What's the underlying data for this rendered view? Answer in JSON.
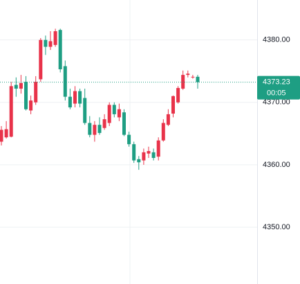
{
  "chart_data": {
    "type": "candlestick",
    "open": [
      4363.7,
      4364.4,
      4364.5,
      4372.8,
      4372.2,
      4373.3,
      4368.7,
      4370.0,
      4373.7,
      4380.0,
      4378.9,
      4379.2,
      4381.6,
      4375.8,
      4370.9,
      4369.8,
      4371.8,
      4370.7,
      4366.7,
      4364.8,
      4366.4,
      4365.9,
      4366.7,
      4369.6,
      4367.6,
      4368.4,
      4364.8,
      4363.3,
      4360.9,
      4360.7,
      4361.8,
      4362.0,
      4361.3,
      4363.9,
      4366.4,
      4368.2,
      4370.0,
      4372.2,
      4374.4,
      4374.0,
      4374.1
    ],
    "high": [
      4366.2,
      4367.0,
      4373.3,
      4374.0,
      4374.4,
      4374.2,
      4371.1,
      4374.2,
      4380.3,
      4380.7,
      4381.4,
      4381.8,
      4381.8,
      4376.7,
      4372.2,
      4372.6,
      4372.2,
      4372.2,
      4367.8,
      4367.0,
      4367.6,
      4368.1,
      4370.0,
      4370.0,
      4369.8,
      4368.9,
      4365.3,
      4363.7,
      4361.4,
      4362.6,
      4362.9,
      4362.6,
      4364.4,
      4367.3,
      4368.9,
      4371.1,
      4372.6,
      4375.1,
      4375.1,
      4374.4,
      4374.4
    ],
    "low": [
      4363.1,
      4364.2,
      4364.4,
      4370.9,
      4371.4,
      4368.7,
      4368.1,
      4369.6,
      4373.3,
      4377.6,
      4378.4,
      4378.9,
      4374.8,
      4370.3,
      4368.9,
      4369.2,
      4369.2,
      4366.4,
      4364.4,
      4363.7,
      4364.8,
      4365.6,
      4366.2,
      4367.6,
      4367.0,
      4364.6,
      4362.9,
      4360.3,
      4359.2,
      4360.0,
      4361.1,
      4360.7,
      4360.7,
      4363.7,
      4366.2,
      4367.6,
      4369.8,
      4372.0,
      4374.0,
      4373.8,
      4372.2
    ],
    "close": [
      4365.6,
      4365.7,
      4372.6,
      4372.2,
      4373.1,
      4368.9,
      4370.3,
      4373.3,
      4380.0,
      4378.9,
      4379.8,
      4381.4,
      4375.3,
      4370.9,
      4369.2,
      4371.8,
      4369.8,
      4366.7,
      4364.8,
      4366.4,
      4365.1,
      4367.3,
      4369.6,
      4368.1,
      4368.9,
      4364.8,
      4363.3,
      4360.7,
      4360.4,
      4362.0,
      4362.2,
      4361.1,
      4363.9,
      4366.7,
      4368.1,
      4371.0,
      4372.3,
      4374.4,
      4374.6,
      4374.1,
      4373.23
    ],
    "up_color": "#e8334a",
    "down_color": "#1e9e83",
    "ylim": [
      4340.9,
      4386.4
    ],
    "yticks": [
      {
        "value": 4380,
        "label": "4380.00"
      },
      {
        "value": 4370,
        "label": "4370.00"
      },
      {
        "value": 4360,
        "label": "4360.00"
      },
      {
        "value": 4350,
        "label": "4350.00"
      }
    ],
    "grid": true,
    "last_price": 4373.23,
    "countdown": "00:05"
  }
}
